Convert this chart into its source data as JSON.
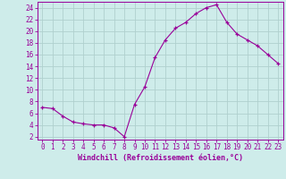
{
  "xlabel": "Windchill (Refroidissement éolien,°C)",
  "hours": [
    0,
    1,
    2,
    3,
    4,
    5,
    6,
    7,
    8,
    9,
    10,
    11,
    12,
    13,
    14,
    15,
    16,
    17,
    18,
    19,
    20,
    21,
    22,
    23
  ],
  "values": [
    7.0,
    6.8,
    5.5,
    4.5,
    4.2,
    4.0,
    4.0,
    3.5,
    2.0,
    7.5,
    10.5,
    15.5,
    18.5,
    20.5,
    21.5,
    23.0,
    24.0,
    24.5,
    21.5,
    19.5,
    18.5,
    17.5,
    16.0,
    14.5
  ],
  "bg_color": "#ceecea",
  "line_color": "#990099",
  "marker_color": "#990099",
  "grid_color": "#b0d0ce",
  "tick_color": "#990099",
  "label_color": "#990099",
  "spine_color": "#990099",
  "ylim": [
    1.5,
    25
  ],
  "yticks": [
    2,
    4,
    6,
    8,
    10,
    12,
    14,
    16,
    18,
    20,
    22,
    24
  ],
  "xticks": [
    0,
    1,
    2,
    3,
    4,
    5,
    6,
    7,
    8,
    9,
    10,
    11,
    12,
    13,
    14,
    15,
    16,
    17,
    18,
    19,
    20,
    21,
    22,
    23
  ],
  "xlabel_fontsize": 6.0,
  "tick_fontsize": 5.5
}
